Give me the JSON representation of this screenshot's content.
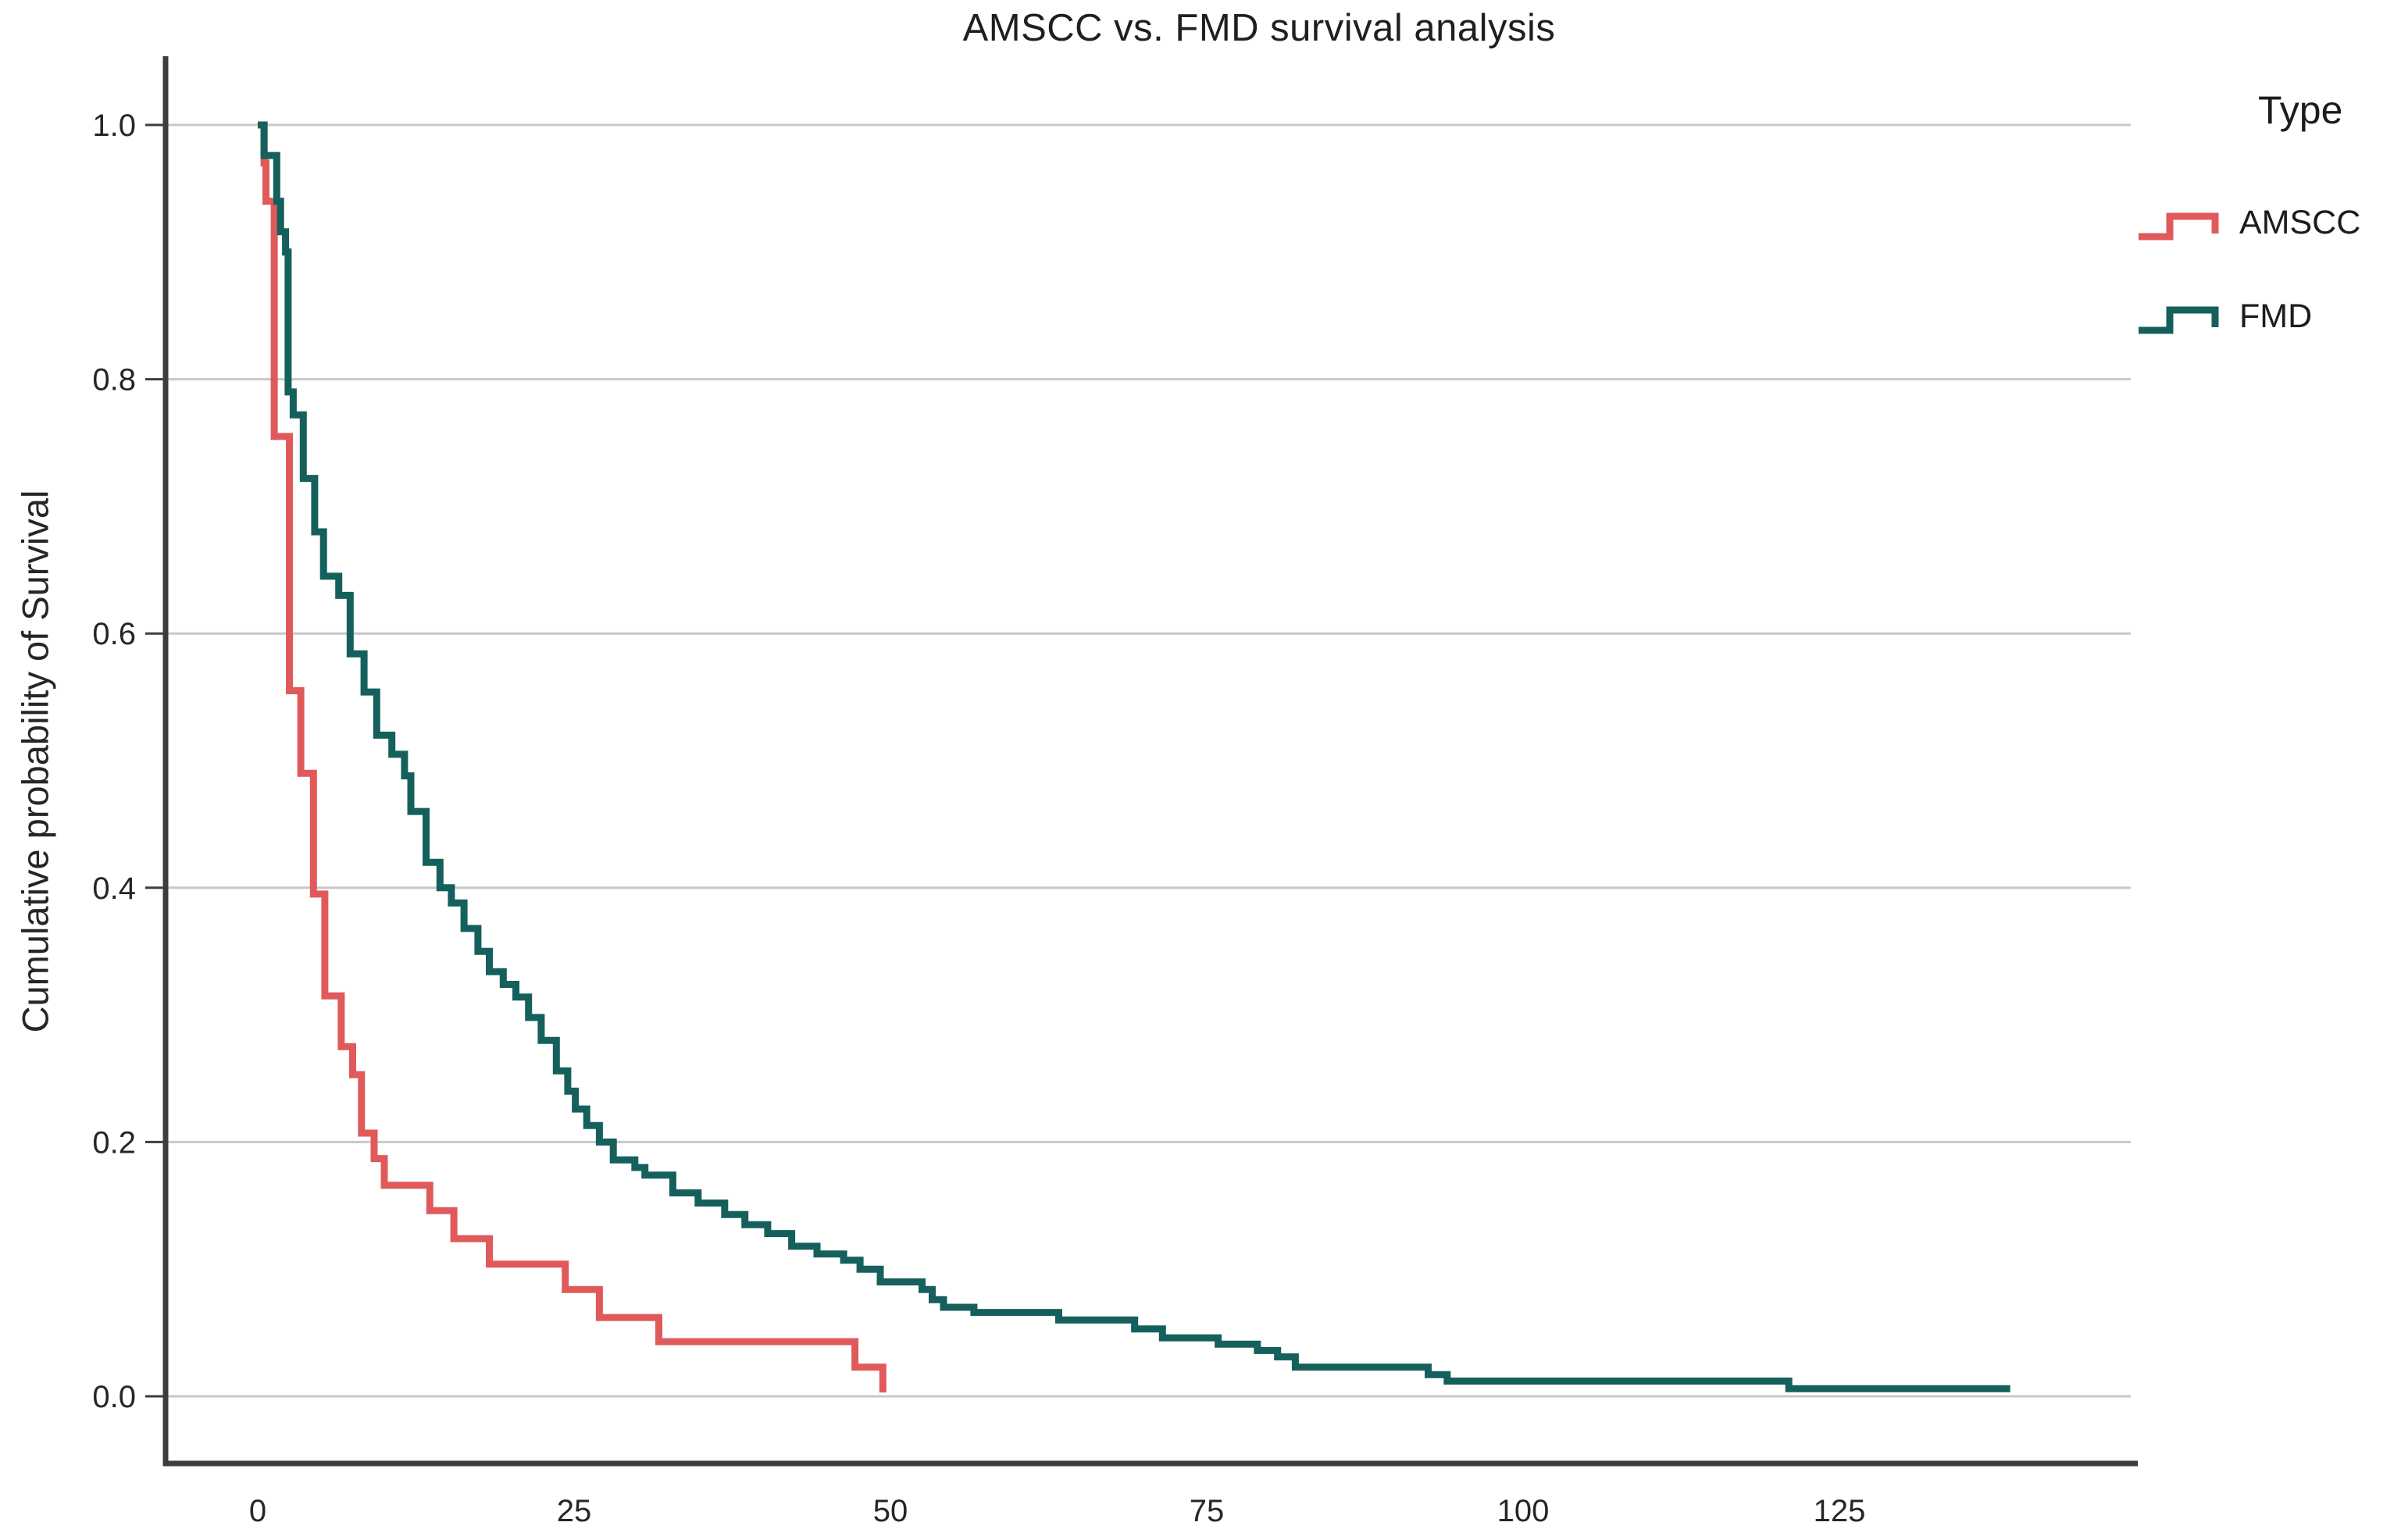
{
  "title": "AMSCC vs. FMD survival analysis",
  "y_axis": {
    "label": "Cumulative probability of Survival",
    "tick_labels": [
      "1.0",
      "0.8",
      "0.6",
      "0.4",
      "0.2",
      "0.0"
    ]
  },
  "x_axis": {
    "tick_labels": [
      "0",
      "25",
      "50",
      "75",
      "100",
      "125"
    ]
  },
  "legend": {
    "title": "Type",
    "entries": [
      {
        "label": "AMSCC",
        "color": "#E05A5B"
      },
      {
        "label": "FMD",
        "color": "#15605C"
      }
    ]
  },
  "colors": {
    "background": "#FFFFFF",
    "grid": "#C8C8C8",
    "axis": "#3D3D3D",
    "text": "#262626",
    "amscc": "#E05A5B",
    "fmd": "#15605C"
  },
  "chart_data": {
    "type": "line",
    "subtype": "kaplan-meier-step",
    "title": "AMSCC vs. FMD survival analysis",
    "xlabel": "",
    "ylabel": "Cumulative probability of Survival",
    "xlim": [
      -7.3,
      148
    ],
    "ylim": [
      -0.053,
      1.05
    ],
    "x_ticks": [
      0,
      25,
      50,
      75,
      100,
      125
    ],
    "y_ticks": [
      0.0,
      0.2,
      0.4,
      0.6,
      0.8,
      1.0
    ],
    "grid": "horizontal-only",
    "legend_position": "top-right-outside",
    "series": [
      {
        "name": "AMSCC",
        "color": "#E05A5B",
        "steps": [
          [
            0,
            1.0
          ],
          [
            0.5,
            0.97
          ],
          [
            0.65,
            0.94
          ],
          [
            1.3,
            0.755
          ],
          [
            2.5,
            0.555
          ],
          [
            3.4,
            0.49
          ],
          [
            4.4,
            0.395
          ],
          [
            5.3,
            0.315
          ],
          [
            6.6,
            0.275
          ],
          [
            7.5,
            0.253
          ],
          [
            8.2,
            0.207
          ],
          [
            9.2,
            0.187
          ],
          [
            10.0,
            0.166
          ],
          [
            13.6,
            0.146
          ],
          [
            15.5,
            0.124
          ],
          [
            18.3,
            0.104
          ],
          [
            24.3,
            0.084
          ],
          [
            27.0,
            0.062
          ],
          [
            31.7,
            0.043
          ],
          [
            47.2,
            0.023
          ],
          [
            49.4,
            0.003
          ]
        ]
      },
      {
        "name": "FMD",
        "color": "#15605C",
        "steps": [
          [
            0,
            1.0
          ],
          [
            0.5,
            0.976
          ],
          [
            1.5,
            0.94
          ],
          [
            1.8,
            0.916
          ],
          [
            2.2,
            0.9
          ],
          [
            2.4,
            0.79
          ],
          [
            2.8,
            0.772
          ],
          [
            3.6,
            0.722
          ],
          [
            4.5,
            0.68
          ],
          [
            5.2,
            0.645
          ],
          [
            6.4,
            0.63
          ],
          [
            7.3,
            0.584
          ],
          [
            8.4,
            0.554
          ],
          [
            9.4,
            0.52
          ],
          [
            10.6,
            0.505
          ],
          [
            11.6,
            0.488
          ],
          [
            12.1,
            0.46
          ],
          [
            13.3,
            0.42
          ],
          [
            14.4,
            0.4
          ],
          [
            15.3,
            0.388
          ],
          [
            16.3,
            0.368
          ],
          [
            17.4,
            0.35
          ],
          [
            18.3,
            0.334
          ],
          [
            19.4,
            0.324
          ],
          [
            20.4,
            0.314
          ],
          [
            21.4,
            0.298
          ],
          [
            22.4,
            0.28
          ],
          [
            23.6,
            0.256
          ],
          [
            24.5,
            0.24
          ],
          [
            25.1,
            0.226
          ],
          [
            26.0,
            0.213
          ],
          [
            27.0,
            0.2
          ],
          [
            28.1,
            0.186
          ],
          [
            29.8,
            0.18
          ],
          [
            30.6,
            0.174
          ],
          [
            32.8,
            0.16
          ],
          [
            34.8,
            0.152
          ],
          [
            36.9,
            0.143
          ],
          [
            38.5,
            0.135
          ],
          [
            40.3,
            0.128
          ],
          [
            42.2,
            0.118
          ],
          [
            44.2,
            0.112
          ],
          [
            46.3,
            0.107
          ],
          [
            47.6,
            0.1
          ],
          [
            49.2,
            0.09
          ],
          [
            52.5,
            0.084
          ],
          [
            53.3,
            0.076
          ],
          [
            54.2,
            0.07
          ],
          [
            56.6,
            0.066
          ],
          [
            63.3,
            0.06
          ],
          [
            69.3,
            0.053
          ],
          [
            71.5,
            0.046
          ],
          [
            75.9,
            0.041
          ],
          [
            79.0,
            0.036
          ],
          [
            80.6,
            0.031
          ],
          [
            82.0,
            0.023
          ],
          [
            92.5,
            0.017
          ],
          [
            94.0,
            0.012
          ],
          [
            121.0,
            0.006
          ],
          [
            138.5,
            0.006
          ]
        ]
      }
    ]
  }
}
